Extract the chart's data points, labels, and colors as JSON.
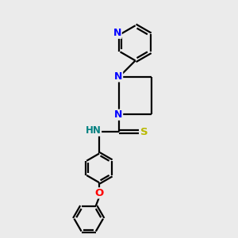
{
  "background_color": "#ebebeb",
  "bond_color": "#000000",
  "nitrogen_color": "#0000ff",
  "oxygen_color": "#ff0000",
  "sulfur_color": "#b8b800",
  "nh_color": "#008080",
  "line_width": 1.6,
  "figsize": [
    3.0,
    3.0
  ],
  "dpi": 100,
  "xlim": [
    0,
    10
  ],
  "ylim": [
    0,
    10
  ]
}
